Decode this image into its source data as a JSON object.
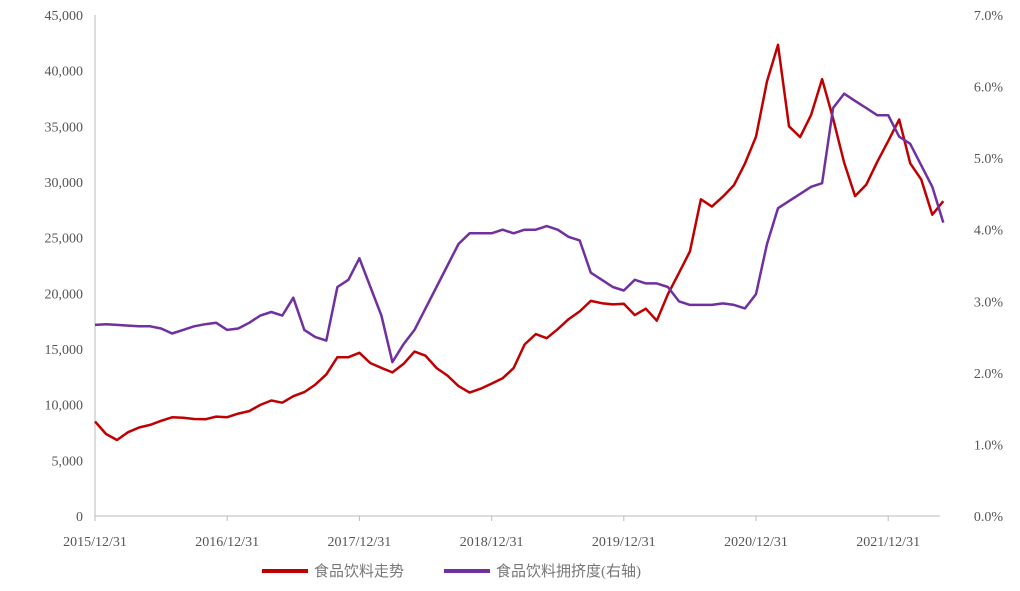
{
  "chart_data": {
    "type": "line",
    "title": "",
    "x_tick_labels": [
      "2015/12/31",
      "2016/12/31",
      "2017/12/31",
      "2018/12/31",
      "2019/12/31",
      "2020/12/31",
      "2021/12/31"
    ],
    "y_left": {
      "range": [
        0,
        45000
      ],
      "tick_labels": [
        "0",
        "5,000",
        "10,000",
        "15,000",
        "20,000",
        "25,000",
        "30,000",
        "35,000",
        "40,000",
        "45,000"
      ]
    },
    "y_right": {
      "range": [
        0,
        7
      ],
      "unit": "%",
      "tick_labels": [
        "0.0%",
        "1.0%",
        "2.0%",
        "3.0%",
        "4.0%",
        "5.0%",
        "6.0%",
        "7.0%"
      ]
    },
    "grid": false,
    "legend_position": "bottom",
    "x": [
      "2015-12",
      "2016-01",
      "2016-02",
      "2016-03",
      "2016-04",
      "2016-05",
      "2016-06",
      "2016-07",
      "2016-08",
      "2016-09",
      "2016-10",
      "2016-11",
      "2016-12",
      "2017-01",
      "2017-02",
      "2017-03",
      "2017-04",
      "2017-05",
      "2017-06",
      "2017-07",
      "2017-08",
      "2017-09",
      "2017-10",
      "2017-11",
      "2017-12",
      "2018-01",
      "2018-02",
      "2018-03",
      "2018-04",
      "2018-05",
      "2018-06",
      "2018-07",
      "2018-08",
      "2018-09",
      "2018-10",
      "2018-11",
      "2018-12",
      "2019-01",
      "2019-02",
      "2019-03",
      "2019-04",
      "2019-05",
      "2019-06",
      "2019-07",
      "2019-08",
      "2019-09",
      "2019-10",
      "2019-11",
      "2019-12",
      "2020-01",
      "2020-02",
      "2020-03",
      "2020-04",
      "2020-05",
      "2020-06",
      "2020-07",
      "2020-08",
      "2020-09",
      "2020-10",
      "2020-11",
      "2020-12",
      "2021-01",
      "2021-02",
      "2021-03",
      "2021-04",
      "2021-05",
      "2021-06",
      "2021-07",
      "2021-08",
      "2021-09",
      "2021-10",
      "2021-11",
      "2021-12",
      "2022-01",
      "2022-02",
      "2022-03",
      "2022-04",
      "2022-05"
    ],
    "series": [
      {
        "name": "食品饮料走势",
        "axis": "left",
        "color": "#c00000",
        "values": [
          8500,
          7000,
          6800,
          7300,
          7800,
          8000,
          8300,
          8800,
          9100,
          8900,
          8700,
          9000,
          9200,
          9200,
          9500,
          9800,
          10000,
          10000,
          10500,
          11000,
          11500,
          12500,
          14000,
          14500,
          15000,
          14000,
          13500,
          13300,
          14000,
          15000,
          14000,
          13000,
          12500,
          11500,
          11000,
          11200,
          11500,
          12000,
          13500,
          15500,
          16500,
          16000,
          17000,
          18000,
          18500,
          19000,
          19000,
          18800,
          19000,
          18000,
          18500,
          17500,
          20000,
          22000,
          24000,
          28500,
          28000,
          29000,
          30000,
          32000,
          34000,
          39000,
          42000,
          35000,
          34000,
          36000,
          39000,
          36000,
          32000,
          29000,
          30000,
          32000,
          34000,
          36000,
          32000,
          30000,
          27000,
          28000
        ]
      },
      {
        "name": "食品饮料拥挤度(右轴)",
        "axis": "right",
        "color": "#7030a0",
        "values": [
          2.67,
          2.68,
          2.67,
          2.66,
          2.65,
          2.65,
          2.62,
          2.55,
          2.6,
          2.65,
          2.68,
          2.7,
          2.6,
          2.62,
          2.7,
          2.8,
          2.85,
          2.8,
          3.05,
          2.6,
          2.5,
          2.45,
          3.2,
          3.3,
          3.6,
          3.2,
          2.8,
          2.15,
          2.4,
          2.6,
          2.9,
          3.2,
          3.5,
          3.8,
          3.95,
          3.95,
          3.95,
          4.0,
          3.95,
          4.0,
          4.0,
          4.05,
          4.0,
          3.9,
          3.85,
          3.4,
          3.3,
          3.2,
          3.15,
          3.3,
          3.25,
          3.25,
          3.2,
          3.0,
          2.95,
          2.95,
          2.95,
          2.97,
          2.95,
          2.9,
          3.1,
          3.8,
          4.3,
          4.4,
          4.5,
          4.6,
          4.65,
          5.7,
          5.9,
          5.8,
          5.7,
          5.6,
          5.6,
          5.3,
          5.2,
          4.9,
          4.6,
          4.1
        ]
      }
    ]
  }
}
